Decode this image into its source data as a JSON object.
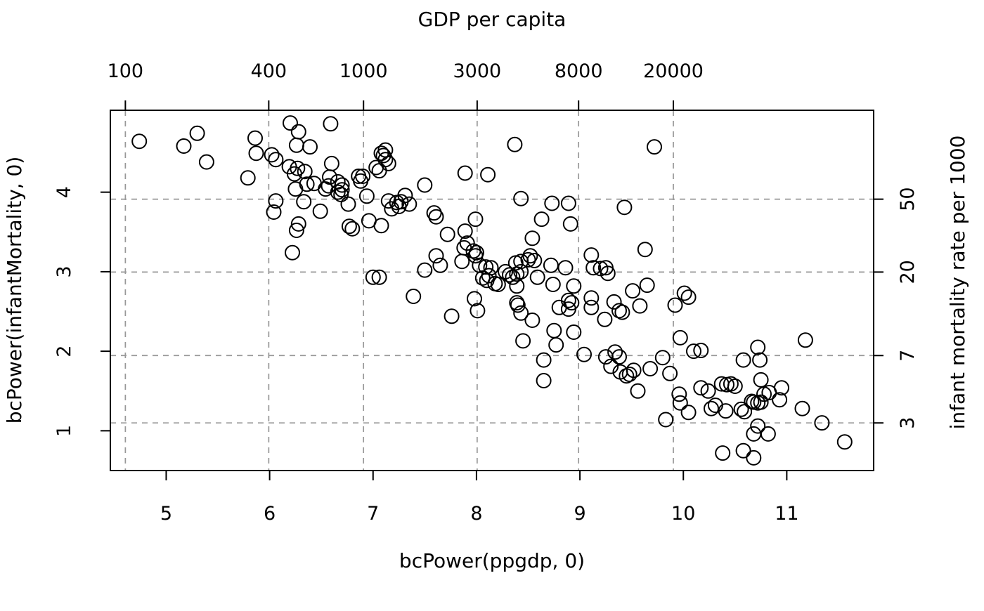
{
  "figure": {
    "background": "#ffffff",
    "point_color": "#000000",
    "grid_color": "#989898",
    "axis_color": "#000000"
  },
  "chart_data": {
    "type": "scatter",
    "title_top": "GDP per capita",
    "xlabel": "bcPower(ppgdp, 0)",
    "ylabel_left": "bcPower(infantMortality, 0)",
    "ylabel_right": "infant mortality rate per 1000",
    "xlim": [
      4.46,
      11.84
    ],
    "ylim": [
      0.5,
      5.03
    ],
    "grid": "dashed, at top-axis and right-axis tick positions",
    "legend": "none",
    "x_ticks_bottom": [
      {
        "label": "5",
        "value": 5
      },
      {
        "label": "6",
        "value": 6
      },
      {
        "label": "7",
        "value": 7
      },
      {
        "label": "8",
        "value": 8
      },
      {
        "label": "9",
        "value": 9
      },
      {
        "label": "10",
        "value": 10
      },
      {
        "label": "11",
        "value": 11
      }
    ],
    "x_ticks_top": [
      {
        "label": "100",
        "value": 4.6052
      },
      {
        "label": "400",
        "value": 5.9915
      },
      {
        "label": "1000",
        "value": 6.9078
      },
      {
        "label": "3000",
        "value": 8.0064
      },
      {
        "label": "8000",
        "value": 8.9872
      },
      {
        "label": "20000",
        "value": 9.9035
      }
    ],
    "y_ticks_left": [
      {
        "label": "1",
        "value": 1
      },
      {
        "label": "2",
        "value": 2
      },
      {
        "label": "3",
        "value": 3
      },
      {
        "label": "4",
        "value": 4
      }
    ],
    "y_ticks_right": [
      {
        "label": "3",
        "value": 1.0986
      },
      {
        "label": "7",
        "value": 1.9459
      },
      {
        "label": "20",
        "value": 2.9957
      },
      {
        "label": "50",
        "value": 3.912
      }
    ],
    "points": [
      [
        4.74,
        4.64
      ],
      [
        5.17,
        4.58
      ],
      [
        5.3,
        4.74
      ],
      [
        5.39,
        4.38
      ],
      [
        5.79,
        4.18
      ],
      [
        5.86,
        4.68
      ],
      [
        5.87,
        4.49
      ],
      [
        6.02,
        4.47
      ],
      [
        6.06,
        4.41
      ],
      [
        6.2,
        4.87
      ],
      [
        6.28,
        4.76
      ],
      [
        6.26,
        4.59
      ],
      [
        6.39,
        4.57
      ],
      [
        6.19,
        4.32
      ],
      [
        6.27,
        4.3
      ],
      [
        6.34,
        4.26
      ],
      [
        6.24,
        4.23
      ],
      [
        6.25,
        4.04
      ],
      [
        6.36,
        4.1
      ],
      [
        6.43,
        4.11
      ],
      [
        6.06,
        3.89
      ],
      [
        6.04,
        3.75
      ],
      [
        6.33,
        3.88
      ],
      [
        6.28,
        3.6
      ],
      [
        6.26,
        3.52
      ],
      [
        6.22,
        3.24
      ],
      [
        6.49,
        3.76
      ],
      [
        6.59,
        4.86
      ],
      [
        6.6,
        4.36
      ],
      [
        6.58,
        4.19
      ],
      [
        6.57,
        4.08
      ],
      [
        6.54,
        4.04
      ],
      [
        6.66,
        4.13
      ],
      [
        6.7,
        4.09
      ],
      [
        6.7,
        4.03
      ],
      [
        6.66,
        4.0
      ],
      [
        6.69,
        3.97
      ],
      [
        6.76,
        3.85
      ],
      [
        6.86,
        4.2
      ],
      [
        6.9,
        4.2
      ],
      [
        6.88,
        4.14
      ],
      [
        6.94,
        3.95
      ],
      [
        7.03,
        4.31
      ],
      [
        7.06,
        4.27
      ],
      [
        7.08,
        4.49
      ],
      [
        7.12,
        4.53
      ],
      [
        7.1,
        4.46
      ],
      [
        7.12,
        4.41
      ],
      [
        7.15,
        4.36
      ],
      [
        7.15,
        3.89
      ],
      [
        7.18,
        3.79
      ],
      [
        7.23,
        3.87
      ],
      [
        7.25,
        3.82
      ],
      [
        7.27,
        3.88
      ],
      [
        7.31,
        3.96
      ],
      [
        7.35,
        3.85
      ],
      [
        6.77,
        3.57
      ],
      [
        6.8,
        3.54
      ],
      [
        6.96,
        3.64
      ],
      [
        7.08,
        3.58
      ],
      [
        7.5,
        4.09
      ],
      [
        7.59,
        3.74
      ],
      [
        7.61,
        3.69
      ],
      [
        7.89,
        4.24
      ],
      [
        8.11,
        4.22
      ],
      [
        7.99,
        3.66
      ],
      [
        7.72,
        3.47
      ],
      [
        8.37,
        4.6
      ],
      [
        9.72,
        4.57
      ],
      [
        8.43,
        3.92
      ],
      [
        8.73,
        3.86
      ],
      [
        8.89,
        3.86
      ],
      [
        8.63,
        3.66
      ],
      [
        8.91,
        3.6
      ],
      [
        9.43,
        3.81
      ],
      [
        9.63,
        3.28
      ],
      [
        7.0,
        2.93
      ],
      [
        7.06,
        2.93
      ],
      [
        7.39,
        2.69
      ],
      [
        7.5,
        3.02
      ],
      [
        7.61,
        3.2
      ],
      [
        7.65,
        3.08
      ],
      [
        7.76,
        2.44
      ],
      [
        7.89,
        3.51
      ],
      [
        7.91,
        3.36
      ],
      [
        7.88,
        3.3
      ],
      [
        7.97,
        3.26
      ],
      [
        8.0,
        3.24
      ],
      [
        7.99,
        3.2
      ],
      [
        7.86,
        3.13
      ],
      [
        8.03,
        3.08
      ],
      [
        8.09,
        3.06
      ],
      [
        8.14,
        3.05
      ],
      [
        8.06,
        2.92
      ],
      [
        8.1,
        2.89
      ],
      [
        8.12,
        2.95
      ],
      [
        7.98,
        2.66
      ],
      [
        8.01,
        2.51
      ],
      [
        8.18,
        2.85
      ],
      [
        8.21,
        2.84
      ],
      [
        8.28,
        3.0
      ],
      [
        8.32,
        2.96
      ],
      [
        8.35,
        2.93
      ],
      [
        8.39,
        2.97
      ],
      [
        8.43,
        3.0
      ],
      [
        8.39,
        2.82
      ],
      [
        8.54,
        3.42
      ],
      [
        8.38,
        3.11
      ],
      [
        8.43,
        3.13
      ],
      [
        8.52,
        3.2
      ],
      [
        8.56,
        3.14
      ],
      [
        8.5,
        3.15
      ],
      [
        8.59,
        2.93
      ],
      [
        8.72,
        3.08
      ],
      [
        8.74,
        2.84
      ],
      [
        8.86,
        3.05
      ],
      [
        8.94,
        2.82
      ],
      [
        8.39,
        2.61
      ],
      [
        8.4,
        2.58
      ],
      [
        8.43,
        2.48
      ],
      [
        8.54,
        2.39
      ],
      [
        8.45,
        2.13
      ],
      [
        8.75,
        2.26
      ],
      [
        8.77,
        2.08
      ],
      [
        8.8,
        2.55
      ],
      [
        8.89,
        2.64
      ],
      [
        8.92,
        2.61
      ],
      [
        8.89,
        2.53
      ],
      [
        8.94,
        2.24
      ],
      [
        9.11,
        3.21
      ],
      [
        9.13,
        3.05
      ],
      [
        9.2,
        3.04
      ],
      [
        9.25,
        3.05
      ],
      [
        9.27,
        2.98
      ],
      [
        9.11,
        2.67
      ],
      [
        9.11,
        2.55
      ],
      [
        9.24,
        2.4
      ],
      [
        9.33,
        2.62
      ],
      [
        9.38,
        2.51
      ],
      [
        9.41,
        2.49
      ],
      [
        9.51,
        2.76
      ],
      [
        9.58,
        2.57
      ],
      [
        9.65,
        2.83
      ],
      [
        9.92,
        2.58
      ],
      [
        10.01,
        2.73
      ],
      [
        10.05,
        2.68
      ],
      [
        9.97,
        2.17
      ],
      [
        8.65,
        1.89
      ],
      [
        8.65,
        1.63
      ],
      [
        9.04,
        1.96
      ],
      [
        9.25,
        1.93
      ],
      [
        9.34,
        1.99
      ],
      [
        9.38,
        1.93
      ],
      [
        9.3,
        1.81
      ],
      [
        9.39,
        1.74
      ],
      [
        9.45,
        1.69
      ],
      [
        9.48,
        1.71
      ],
      [
        9.52,
        1.76
      ],
      [
        9.56,
        1.5
      ],
      [
        9.68,
        1.78
      ],
      [
        9.8,
        1.92
      ],
      [
        9.87,
        1.72
      ],
      [
        9.83,
        1.14
      ],
      [
        9.96,
        1.46
      ],
      [
        9.97,
        1.35
      ],
      [
        10.05,
        1.23
      ],
      [
        10.1,
        2.0
      ],
      [
        10.17,
        2.01
      ],
      [
        10.58,
        1.89
      ],
      [
        10.74,
        1.89
      ],
      [
        10.72,
        2.05
      ],
      [
        11.18,
        2.14
      ],
      [
        10.17,
        1.54
      ],
      [
        10.24,
        1.5
      ],
      [
        10.37,
        1.59
      ],
      [
        10.42,
        1.58
      ],
      [
        10.46,
        1.59
      ],
      [
        10.5,
        1.56
      ],
      [
        10.27,
        1.28
      ],
      [
        10.31,
        1.32
      ],
      [
        10.41,
        1.25
      ],
      [
        10.56,
        1.27
      ],
      [
        10.59,
        1.24
      ],
      [
        10.66,
        1.37
      ],
      [
        10.68,
        1.36
      ],
      [
        10.72,
        1.35
      ],
      [
        10.75,
        1.36
      ],
      [
        10.75,
        1.64
      ],
      [
        10.78,
        1.46
      ],
      [
        10.83,
        1.48
      ],
      [
        10.95,
        1.54
      ],
      [
        10.93,
        1.39
      ],
      [
        11.15,
        1.28
      ],
      [
        11.34,
        1.1
      ],
      [
        10.72,
        1.06
      ],
      [
        10.68,
        0.96
      ],
      [
        10.82,
        0.96
      ],
      [
        10.38,
        0.72
      ],
      [
        10.58,
        0.75
      ],
      [
        10.68,
        0.66
      ],
      [
        11.56,
        0.86
      ]
    ]
  }
}
